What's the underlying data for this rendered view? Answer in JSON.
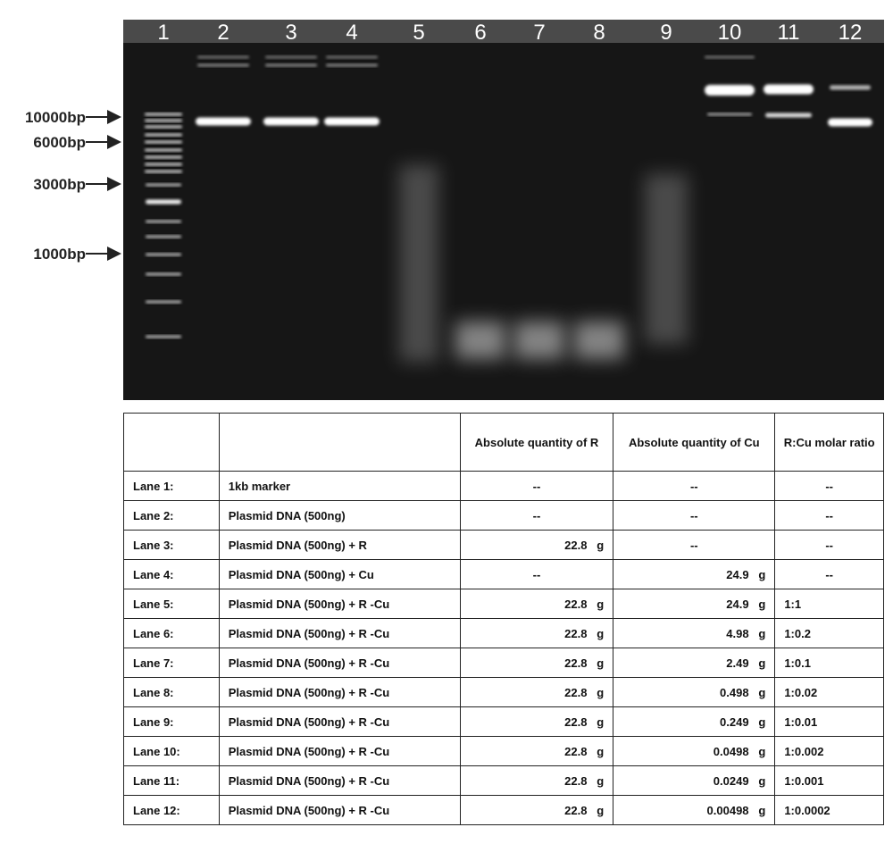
{
  "gel": {
    "lane_numbers": [
      "1",
      "2",
      "3",
      "4",
      "5",
      "6",
      "7",
      "8",
      "9",
      "10",
      "11",
      "12"
    ],
    "markers": [
      "10000bp",
      "6000bp",
      "3000bp",
      "1000bp"
    ]
  },
  "table": {
    "header": [
      "",
      "",
      "Absolute quantity of R",
      "Absolute quantity of Cu",
      "R:Cu molar ratio"
    ],
    "rows": [
      [
        "Lane 1:",
        "1kb marker",
        "--",
        "--",
        "--"
      ],
      [
        "Lane 2:",
        "Plasmid DNA (500ng)",
        "--",
        "--",
        "--"
      ],
      [
        "Lane 3:",
        "Plasmid DNA (500ng) + R",
        "22.8   g",
        "--",
        "--"
      ],
      [
        "Lane 4:",
        "Plasmid DNA (500ng) + Cu",
        "--",
        "24.9   g",
        "--"
      ],
      [
        "Lane 5:",
        "Plasmid DNA (500ng) + R -Cu",
        "22.8   g",
        "24.9   g",
        "1:1"
      ],
      [
        "Lane 6:",
        "Plasmid DNA (500ng) + R -Cu",
        "22.8   g",
        "4.98   g",
        "1:0.2"
      ],
      [
        "Lane 7:",
        "Plasmid DNA (500ng) + R -Cu",
        "22.8   g",
        "2.49   g",
        "1:0.1"
      ],
      [
        "Lane 8:",
        "Plasmid DNA (500ng) + R -Cu",
        "22.8   g",
        "0.498   g",
        "1:0.02"
      ],
      [
        "Lane 9:",
        "Plasmid DNA (500ng) + R -Cu",
        "22.8   g",
        "0.249   g",
        "1:0.01"
      ],
      [
        "Lane 10:",
        "Plasmid DNA (500ng) + R -Cu",
        "22.8   g",
        "0.0498   g",
        "1:0.002"
      ],
      [
        "Lane 11:",
        "Plasmid DNA (500ng) + R -Cu",
        "22.8   g",
        "0.0249   g",
        "1:0.001"
      ],
      [
        "Lane 12:",
        "Plasmid DNA (500ng) + R -Cu",
        "22.8   g",
        "0.00498   g",
        "1:0.0002"
      ]
    ]
  }
}
